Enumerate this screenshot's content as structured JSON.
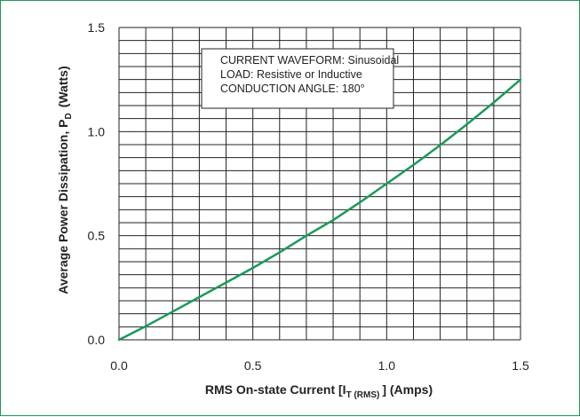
{
  "chart_data": {
    "type": "line",
    "title": "",
    "xlabel": {
      "prefix": "RMS On-state Current [I",
      "subscript": "T (RMS)",
      "suffix": "] (Amps)"
    },
    "ylabel": {
      "prefix": "Average Power Dissipation, P",
      "subscript": "D",
      "suffix": "(Watts)"
    },
    "xlim": [
      0,
      1.5
    ],
    "ylim": [
      0,
      1.5
    ],
    "x_ticks": [
      "0.0",
      "0.5",
      "1.0",
      "1.5"
    ],
    "y_ticks": [
      "0.0",
      "0.5",
      "1.0",
      "1.5"
    ],
    "grid": true,
    "annotation": [
      "CURRENT WAVEFORM: Sinusoidal",
      "LOAD: Resistive or Inductive",
      "CONDUCTION ANGLE: 180°"
    ],
    "series": [
      {
        "color": "#1a9a5a",
        "x": [
          0.0,
          0.1,
          0.2,
          0.3,
          0.4,
          0.5,
          0.6,
          0.7,
          0.8,
          0.9,
          1.0,
          1.1,
          1.2,
          1.3,
          1.4,
          1.5
        ],
        "y": [
          0.0,
          0.065,
          0.135,
          0.205,
          0.275,
          0.345,
          0.42,
          0.5,
          0.575,
          0.66,
          0.75,
          0.84,
          0.935,
          1.035,
          1.14,
          1.25
        ]
      }
    ]
  }
}
